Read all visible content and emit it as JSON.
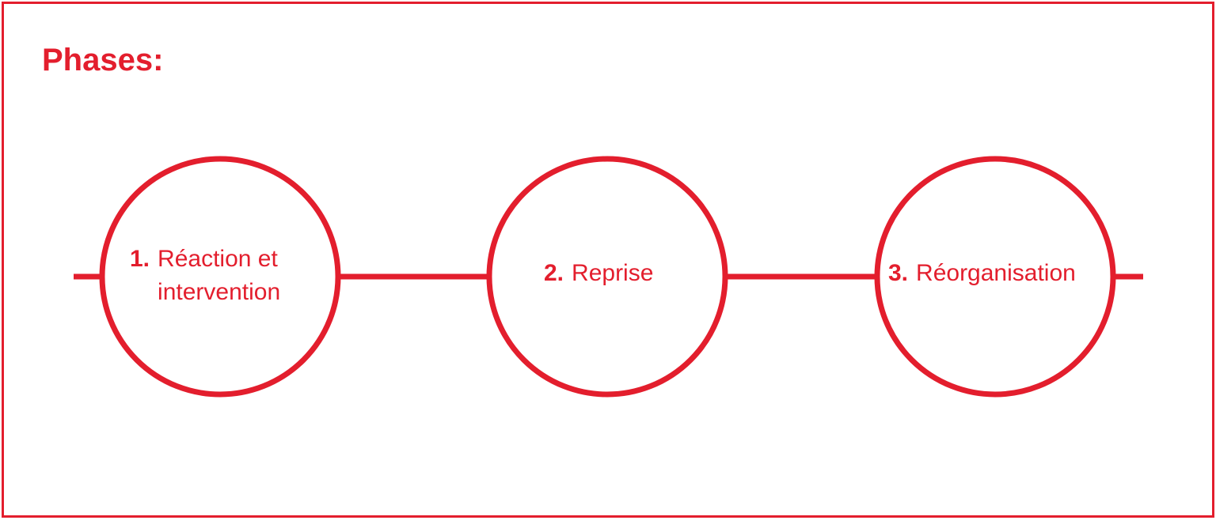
{
  "title": "Phases:",
  "colors": {
    "accent": "#e31e2d",
    "background": "#ffffff"
  },
  "phases": [
    {
      "number": "1.",
      "label": "Réaction et\nintervention"
    },
    {
      "number": "2.",
      "label": "Reprise"
    },
    {
      "number": "3.",
      "label": "Réorganisation"
    }
  ]
}
